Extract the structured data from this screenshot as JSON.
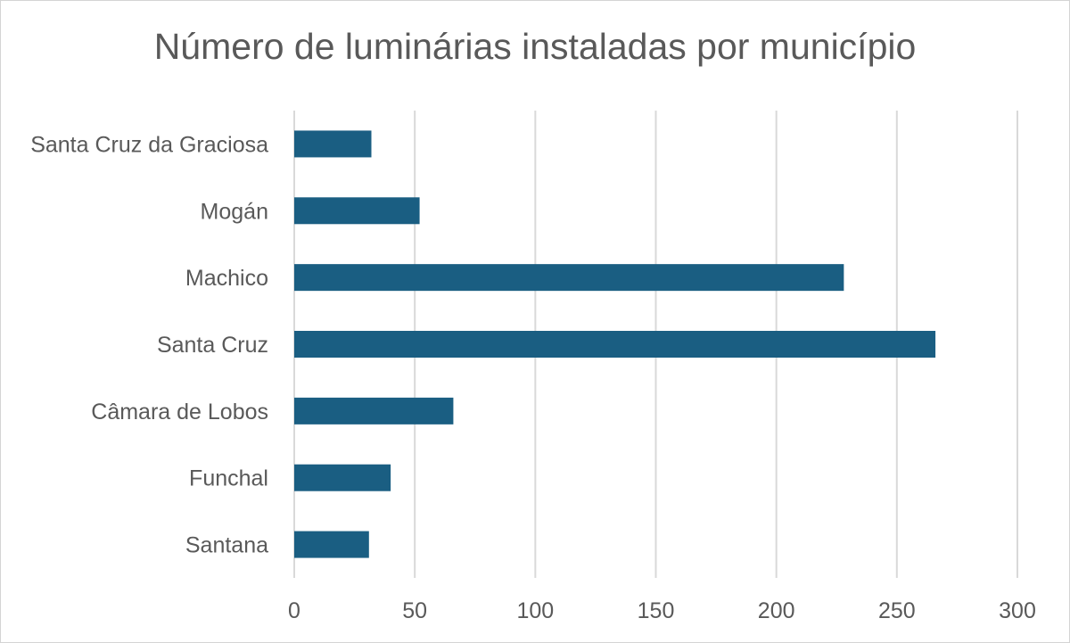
{
  "chart_data": {
    "type": "bar",
    "orientation": "horizontal",
    "title": "Número de luminárias instaladas por município",
    "categories": [
      "Santa Cruz da Graciosa",
      "Mogán",
      "Machico",
      "Santa Cruz",
      "Câmara de Lobos",
      "Funchal",
      "Santana"
    ],
    "values": [
      32,
      52,
      228,
      266,
      66,
      40,
      31
    ],
    "xlim": [
      0,
      300
    ],
    "xticks": [
      0,
      50,
      100,
      150,
      200,
      250,
      300
    ],
    "xlabel": "",
    "ylabel": "",
    "grid": "vertical",
    "legend": "none",
    "bar_color": "#1a5e82",
    "grid_color": "#d9d9d9"
  }
}
